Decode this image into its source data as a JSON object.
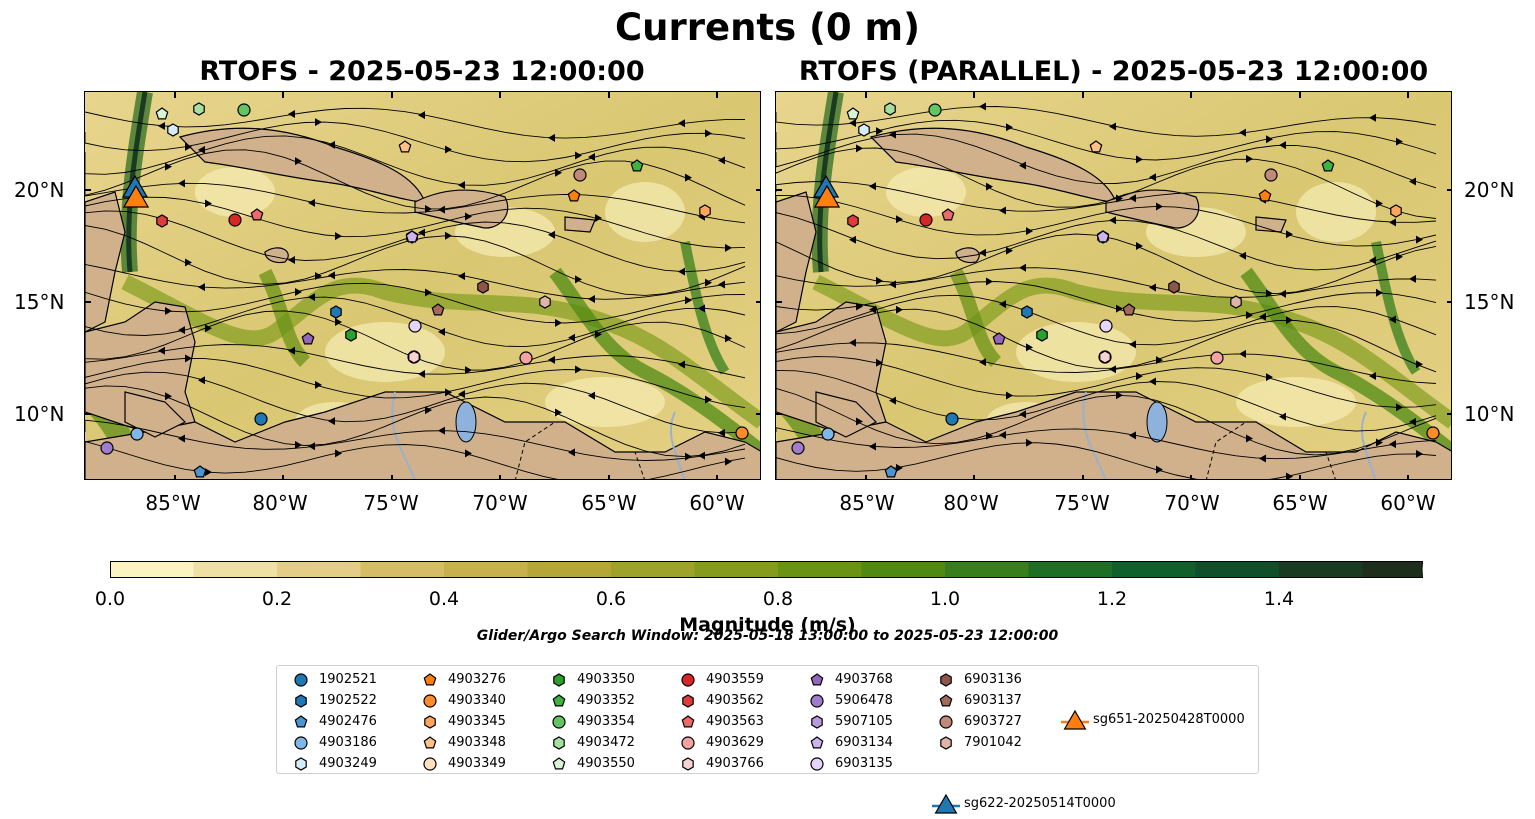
{
  "title": "Currents (0 m)",
  "panels": [
    {
      "title": "RTOFS - 2025-05-23 12:00:00"
    },
    {
      "title": "RTOFS (PARALLEL) - 2025-05-23 12:00:00"
    }
  ],
  "axes": {
    "lat_ticks": [
      "20°N",
      "15°N",
      "10°N"
    ],
    "lon_ticks": [
      "85°W",
      "80°W",
      "75°W",
      "70°W",
      "65°W",
      "60°W"
    ]
  },
  "colorbar": {
    "label": "Magnitude (m/s)",
    "ticks": [
      "0.0",
      "0.2",
      "0.4",
      "0.6",
      "0.8",
      "1.0",
      "1.2",
      "1.4"
    ],
    "colors": [
      "#fbf3c2",
      "#efe0a4",
      "#e4cd87",
      "#d7bc68",
      "#c8b04f",
      "#b5a63a",
      "#9da22c",
      "#849b1d",
      "#6a9215",
      "#4f8913",
      "#367f1c",
      "#1e6e25",
      "#10602c",
      "#0f4f2a",
      "#183b22",
      "#1e2e1c"
    ]
  },
  "search_window": "Glider/Argo Search Window: 2025-05-18 13:00:00 to 2025-05-23 12:00:00",
  "legend": [
    {
      "label": "1902521",
      "shape": "circle",
      "color": "#1f77b4"
    },
    {
      "label": "1902522",
      "shape": "hexagon",
      "color": "#1f77b4"
    },
    {
      "label": "4902476",
      "shape": "pentagon",
      "color": "#4e94d0"
    },
    {
      "label": "4903186",
      "shape": "circle",
      "color": "#7fb8e8"
    },
    {
      "label": "4903249",
      "shape": "hexagon",
      "color": "#d4ecfb"
    },
    {
      "label": "4903276",
      "shape": "pentagon",
      "color": "#ff7f0e"
    },
    {
      "label": "4903340",
      "shape": "circle",
      "color": "#ff8c2a"
    },
    {
      "label": "4903345",
      "shape": "hexagon",
      "color": "#ffa55e"
    },
    {
      "label": "4903348",
      "shape": "pentagon",
      "color": "#ffc08a"
    },
    {
      "label": "4903349",
      "shape": "circle",
      "color": "#ffe0c0"
    },
    {
      "label": "4903350",
      "shape": "hexagon",
      "color": "#2ca02c"
    },
    {
      "label": "4903352",
      "shape": "pentagon",
      "color": "#3fb23f"
    },
    {
      "label": "4903354",
      "shape": "circle",
      "color": "#62c462"
    },
    {
      "label": "4903472",
      "shape": "hexagon",
      "color": "#a5e0a0"
    },
    {
      "label": "4903550",
      "shape": "pentagon",
      "color": "#d8f5d3"
    },
    {
      "label": "4903559",
      "shape": "circle",
      "color": "#d62728"
    },
    {
      "label": "4903562",
      "shape": "hexagon",
      "color": "#df3b3b"
    },
    {
      "label": "4903563",
      "shape": "pentagon",
      "color": "#ee6a6a"
    },
    {
      "label": "4903629",
      "shape": "circle",
      "color": "#f4a3a3"
    },
    {
      "label": "4903766",
      "shape": "hexagon",
      "color": "#f8d1d1"
    },
    {
      "label": "4903768",
      "shape": "pentagon",
      "color": "#9467bd"
    },
    {
      "label": "5906478",
      "shape": "circle",
      "color": "#a07ccc"
    },
    {
      "label": "5907105",
      "shape": "hexagon",
      "color": "#b899dd"
    },
    {
      "label": "6903134",
      "shape": "pentagon",
      "color": "#cdb5ec"
    },
    {
      "label": "6903135",
      "shape": "circle",
      "color": "#e5d5fb"
    },
    {
      "label": "6903136",
      "shape": "hexagon",
      "color": "#8c564b"
    },
    {
      "label": "6903137",
      "shape": "pentagon",
      "color": "#a36a5c"
    },
    {
      "label": "6903727",
      "shape": "circle",
      "color": "#c08a7b"
    },
    {
      "label": "7901042",
      "shape": "hexagon",
      "color": "#e0b4a6"
    },
    {
      "label": "sg622-20250514T0000",
      "shape": "triangle",
      "color": "#1f77b4"
    },
    {
      "label": "sg651-20250428T0000",
      "shape": "triangle",
      "color": "#ff7f0e"
    }
  ]
}
